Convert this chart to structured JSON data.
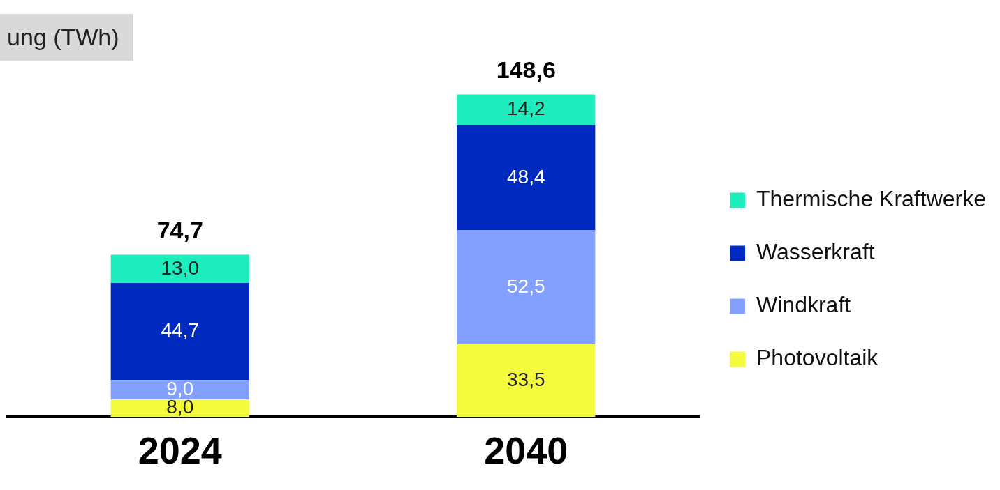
{
  "chart_data": {
    "type": "bar",
    "title": "ung (TWh)",
    "stacked": true,
    "legend": "right",
    "categories": [
      "2024",
      "2040"
    ],
    "series": [
      {
        "name": "Photovoltaik",
        "color": "#f4fa3c",
        "values": [
          8.0,
          33.5
        ],
        "value_labels": [
          "8,0",
          "33,5"
        ]
      },
      {
        "name": "Windkraft",
        "color": "#84a0ff",
        "values": [
          9.0,
          52.5
        ],
        "value_labels": [
          "9,0",
          "52,5"
        ]
      },
      {
        "name": "Wasserkraft",
        "color": "#0029bf",
        "values": [
          44.7,
          48.4
        ],
        "value_labels": [
          "44,7",
          "48,4"
        ]
      },
      {
        "name": "Thermische Kraftwerke",
        "color": "#1eedbd",
        "values": [
          13.0,
          14.2
        ],
        "value_labels": [
          "13,0",
          "14,2"
        ]
      }
    ],
    "totals": [
      "74,7",
      "148,6"
    ]
  }
}
